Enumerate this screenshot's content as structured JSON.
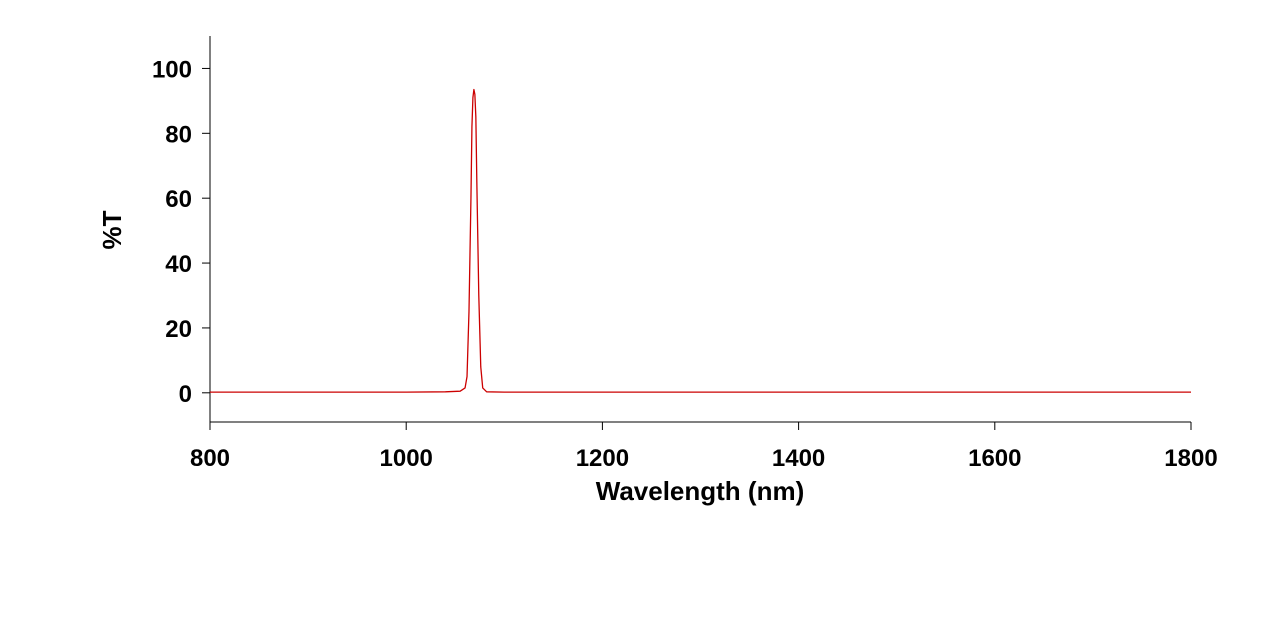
{
  "chart_data": {
    "type": "line",
    "title": "",
    "xlabel": "Wavelength (nm)",
    "ylabel": "%T",
    "xlim": [
      800,
      1800
    ],
    "ylim": [
      -9,
      110
    ],
    "x_ticks": [
      800,
      1000,
      1200,
      1400,
      1600,
      1800
    ],
    "y_ticks": [
      0,
      20,
      40,
      60,
      80,
      100
    ],
    "grid": false,
    "legend": "none",
    "series": [
      {
        "color": "#cc0000",
        "points": [
          [
            800,
            0.2
          ],
          [
            900,
            0.2
          ],
          [
            1000,
            0.2
          ],
          [
            1040,
            0.3
          ],
          [
            1055,
            0.5
          ],
          [
            1060,
            1.5
          ],
          [
            1062,
            5
          ],
          [
            1064,
            25
          ],
          [
            1066,
            60
          ],
          [
            1067,
            82
          ],
          [
            1068,
            91
          ],
          [
            1069,
            93.5
          ],
          [
            1070,
            92
          ],
          [
            1071,
            85
          ],
          [
            1072,
            65
          ],
          [
            1074,
            30
          ],
          [
            1076,
            8
          ],
          [
            1078,
            1.5
          ],
          [
            1082,
            0.3
          ],
          [
            1100,
            0.2
          ],
          [
            1200,
            0.2
          ],
          [
            1300,
            0.2
          ],
          [
            1400,
            0.2
          ],
          [
            1500,
            0.2
          ],
          [
            1600,
            0.2
          ],
          [
            1700,
            0.2
          ],
          [
            1800,
            0.2
          ]
        ]
      }
    ]
  }
}
